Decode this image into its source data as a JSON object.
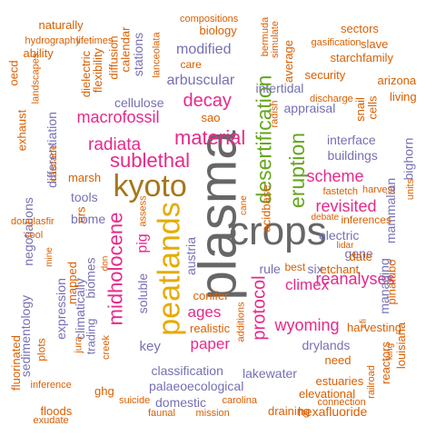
{
  "colors": {
    "orange": "#d95f02",
    "purple": "#7570b3",
    "magenta": "#e7298a",
    "green": "#66a61e",
    "gold": "#e6ab02",
    "olive": "#a6761d",
    "gray": "#666666",
    "teal": "#1b9e77"
  },
  "words": [
    {
      "text": "plasma",
      "color": "gray"
    },
    {
      "text": "crops",
      "color": "gray"
    },
    {
      "text": "kyoto",
      "color": "olive"
    },
    {
      "text": "peatlands",
      "color": "gold"
    },
    {
      "text": "desertification",
      "color": "green"
    },
    {
      "text": "eruption",
      "color": "green"
    },
    {
      "text": "material",
      "color": "magenta"
    },
    {
      "text": "sublethal",
      "color": "magenta"
    },
    {
      "text": "midholocene",
      "color": "magenta"
    },
    {
      "text": "radiata",
      "color": "magenta"
    },
    {
      "text": "decay",
      "color": "magenta"
    },
    {
      "text": "macrofossil",
      "color": "magenta"
    },
    {
      "text": "protocol",
      "color": "magenta"
    },
    {
      "text": "revisited",
      "color": "magenta"
    },
    {
      "text": "scheme",
      "color": "magenta"
    },
    {
      "text": "reanalyses",
      "color": "magenta"
    },
    {
      "text": "wyoming",
      "color": "magenta"
    },
    {
      "text": "climex",
      "color": "magenta"
    },
    {
      "text": "ages",
      "color": "magenta"
    },
    {
      "text": "paper",
      "color": "magenta"
    },
    {
      "text": "pig",
      "color": "magenta"
    },
    {
      "text": "modified",
      "color": "purple"
    },
    {
      "text": "arbuscular",
      "color": "purple"
    },
    {
      "text": "cellulose",
      "color": "purple"
    },
    {
      "text": "intertidal",
      "color": "purple"
    },
    {
      "text": "appraisal",
      "color": "purple"
    },
    {
      "text": "interface",
      "color": "purple"
    },
    {
      "text": "buildings",
      "color": "purple"
    },
    {
      "text": "electric",
      "color": "purple"
    },
    {
      "text": "gene",
      "color": "purple"
    },
    {
      "text": "rule",
      "color": "purple"
    },
    {
      "text": "six",
      "color": "purple"
    },
    {
      "text": "drylands",
      "color": "purple"
    },
    {
      "text": "classification",
      "color": "purple"
    },
    {
      "text": "lakewater",
      "color": "purple"
    },
    {
      "text": "palaeoecological",
      "color": "purple"
    },
    {
      "text": "key",
      "color": "purple"
    },
    {
      "text": "soluble",
      "color": "purple"
    },
    {
      "text": "austria",
      "color": "purple"
    },
    {
      "text": "biome",
      "color": "purple"
    },
    {
      "text": "tools",
      "color": "purple"
    },
    {
      "text": "biomes",
      "color": "purple"
    },
    {
      "text": "climatically",
      "color": "purple"
    },
    {
      "text": "trading",
      "color": "purple"
    },
    {
      "text": "expression",
      "color": "purple"
    },
    {
      "text": "sedimentology",
      "color": "purple"
    },
    {
      "text": "negotiations",
      "color": "purple"
    },
    {
      "text": "differentiation",
      "color": "purple"
    },
    {
      "text": "managing",
      "color": "purple"
    },
    {
      "text": "mammalian",
      "color": "purple"
    },
    {
      "text": "bighorn",
      "color": "purple"
    },
    {
      "text": "domestic",
      "color": "purple"
    },
    {
      "text": "stations",
      "color": "purple"
    },
    {
      "text": "draining",
      "color": "orange"
    },
    {
      "text": "hexafluoride",
      "color": "orange"
    },
    {
      "text": "elevational",
      "color": "orange"
    },
    {
      "text": "estuaries",
      "color": "orange"
    },
    {
      "text": "need",
      "color": "orange"
    },
    {
      "text": "reactors",
      "color": "orange"
    },
    {
      "text": "louisiana",
      "color": "orange"
    },
    {
      "text": "pinatubo",
      "color": "orange"
    },
    {
      "text": "harvesting",
      "color": "orange"
    },
    {
      "text": "ghg",
      "color": "orange"
    },
    {
      "text": "floods",
      "color": "orange"
    },
    {
      "text": "fluorinated",
      "color": "orange"
    },
    {
      "text": "plots",
      "color": "orange"
    },
    {
      "text": "inference",
      "color": "orange"
    },
    {
      "text": "exudate",
      "color": "orange"
    },
    {
      "text": "suicide",
      "color": "orange"
    },
    {
      "text": "faunal",
      "color": "orange"
    },
    {
      "text": "mission",
      "color": "orange"
    },
    {
      "text": "carolina",
      "color": "orange"
    },
    {
      "text": "connection",
      "color": "orange"
    },
    {
      "text": "realistic",
      "color": "orange"
    },
    {
      "text": "conifer",
      "color": "orange"
    },
    {
      "text": "additions",
      "color": "orange"
    },
    {
      "text": "creek",
      "color": "orange"
    },
    {
      "text": "jura",
      "color": "orange"
    },
    {
      "text": "naturally",
      "color": "orange"
    },
    {
      "text": "hydrography",
      "color": "orange"
    },
    {
      "text": "lifetimes",
      "color": "orange"
    },
    {
      "text": "ability",
      "color": "orange"
    },
    {
      "text": "oecd",
      "color": "orange"
    },
    {
      "text": "landscapes",
      "color": "orange"
    },
    {
      "text": "exhaust",
      "color": "orange"
    },
    {
      "text": "flexibility",
      "color": "orange"
    },
    {
      "text": "dielectric",
      "color": "orange"
    },
    {
      "text": "diffusion",
      "color": "orange"
    },
    {
      "text": "calendar",
      "color": "orange"
    },
    {
      "text": "lanceolata",
      "color": "orange"
    },
    {
      "text": "care",
      "color": "orange"
    },
    {
      "text": "biology",
      "color": "orange"
    },
    {
      "text": "compositions",
      "color": "orange"
    },
    {
      "text": "bermuda",
      "color": "orange"
    },
    {
      "text": "simulate",
      "color": "orange"
    },
    {
      "text": "average",
      "color": "orange"
    },
    {
      "text": "sectors",
      "color": "orange"
    },
    {
      "text": "gasification",
      "color": "orange"
    },
    {
      "text": "slave",
      "color": "orange"
    },
    {
      "text": "starch",
      "color": "orange"
    },
    {
      "text": "family",
      "color": "orange"
    },
    {
      "text": "security",
      "color": "orange"
    },
    {
      "text": "arizona",
      "color": "orange"
    },
    {
      "text": "living",
      "color": "orange"
    },
    {
      "text": "snail",
      "color": "orange"
    },
    {
      "text": "cells",
      "color": "orange"
    },
    {
      "text": "discharge",
      "color": "orange"
    },
    {
      "text": "radish",
      "color": "orange"
    },
    {
      "text": "sao",
      "color": "orange"
    },
    {
      "text": "cascade",
      "color": "orange"
    },
    {
      "text": "marsh",
      "color": "orange"
    },
    {
      "text": "ers",
      "color": "orange"
    },
    {
      "text": "douglasfir",
      "color": "orange"
    },
    {
      "text": "cool",
      "color": "orange"
    },
    {
      "text": "mine",
      "color": "orange"
    },
    {
      "text": "mapped",
      "color": "orange"
    },
    {
      "text": "don",
      "color": "orange"
    },
    {
      "text": "assess",
      "color": "orange"
    },
    {
      "text": "cane",
      "color": "orange"
    },
    {
      "text": "acidbase",
      "color": "orange"
    },
    {
      "text": "fastetch",
      "color": "orange"
    },
    {
      "text": "harvest",
      "color": "orange"
    },
    {
      "text": "units",
      "color": "orange"
    },
    {
      "text": "inferences",
      "color": "orange"
    },
    {
      "text": "debate",
      "color": "orange"
    },
    {
      "text": "lidar",
      "color": "orange"
    },
    {
      "text": "etchant",
      "color": "orange"
    },
    {
      "text": "date",
      "color": "orange"
    },
    {
      "text": "best",
      "color": "orange"
    },
    {
      "text": "cfi",
      "color": "orange"
    },
    {
      "text": "king",
      "color": "orange"
    },
    {
      "text": "railroad",
      "color": "orange"
    },
    {
      "text": "rings",
      "color": "orange"
    }
  ]
}
